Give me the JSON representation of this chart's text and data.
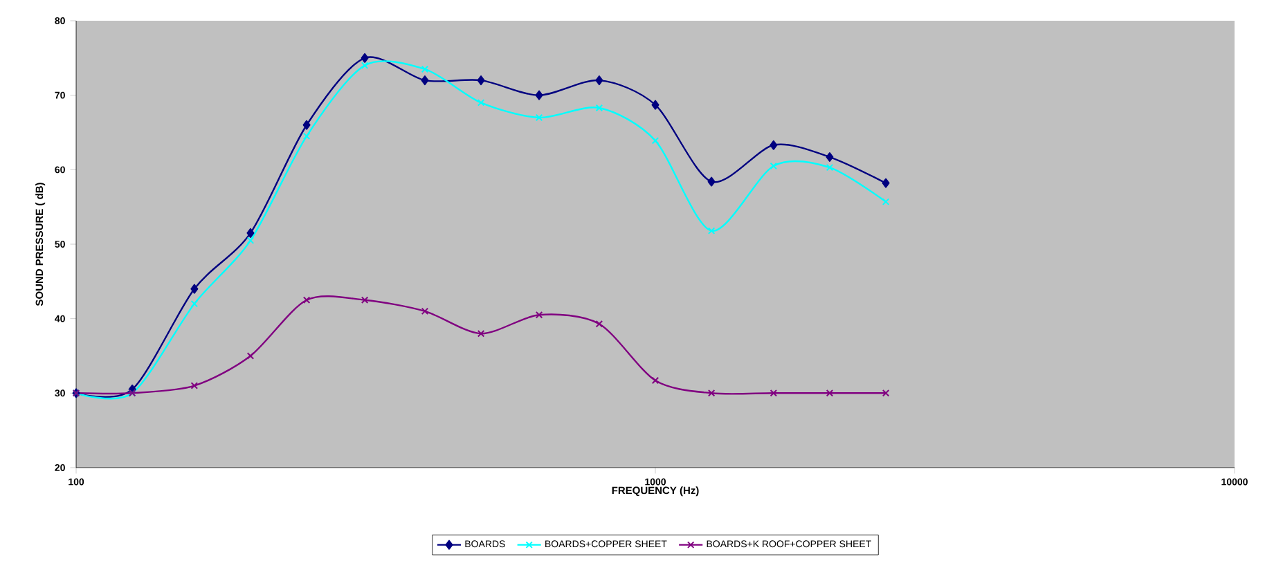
{
  "chart_data": {
    "type": "line",
    "xlabel": "FREQUENCY (Hz)",
    "ylabel": "SOUND PRESSURE ( dB)",
    "x": [
      100,
      125,
      160,
      200,
      250,
      315,
      400,
      500,
      630,
      800,
      1000,
      1250,
      1600,
      2000,
      2500
    ],
    "series": [
      {
        "name": "BOARDS",
        "color": "#000080",
        "marker": "diamond",
        "values": [
          30,
          30.5,
          44,
          51.5,
          66,
          75,
          72,
          72,
          70,
          72,
          68.7,
          58.4,
          63.3,
          61.7,
          58.2
        ]
      },
      {
        "name": "BOARDS+COPPER SHEET",
        "color": "#00ffff",
        "marker": "cross",
        "values": [
          30,
          30,
          42,
          50.5,
          64.5,
          74,
          73.5,
          69,
          67,
          68.3,
          63.9,
          51.8,
          60.5,
          60.3,
          55.7
        ]
      },
      {
        "name": "BOARDS+K ROOF+COPPER SHEET",
        "color": "#800080",
        "marker": "cross",
        "values": [
          30,
          30,
          31,
          35,
          42.5,
          42.5,
          41,
          38,
          40.5,
          39.3,
          31.7,
          30,
          30,
          30,
          30
        ]
      }
    ],
    "log": "x",
    "xlim": [
      100,
      10000
    ],
    "xticks": [
      100,
      1000,
      10000
    ],
    "ylim": [
      20,
      80
    ],
    "yticks": [
      20,
      30,
      40,
      50,
      60,
      70,
      80
    ],
    "grid": false,
    "legend": "bottom",
    "line_style": "solid"
  }
}
